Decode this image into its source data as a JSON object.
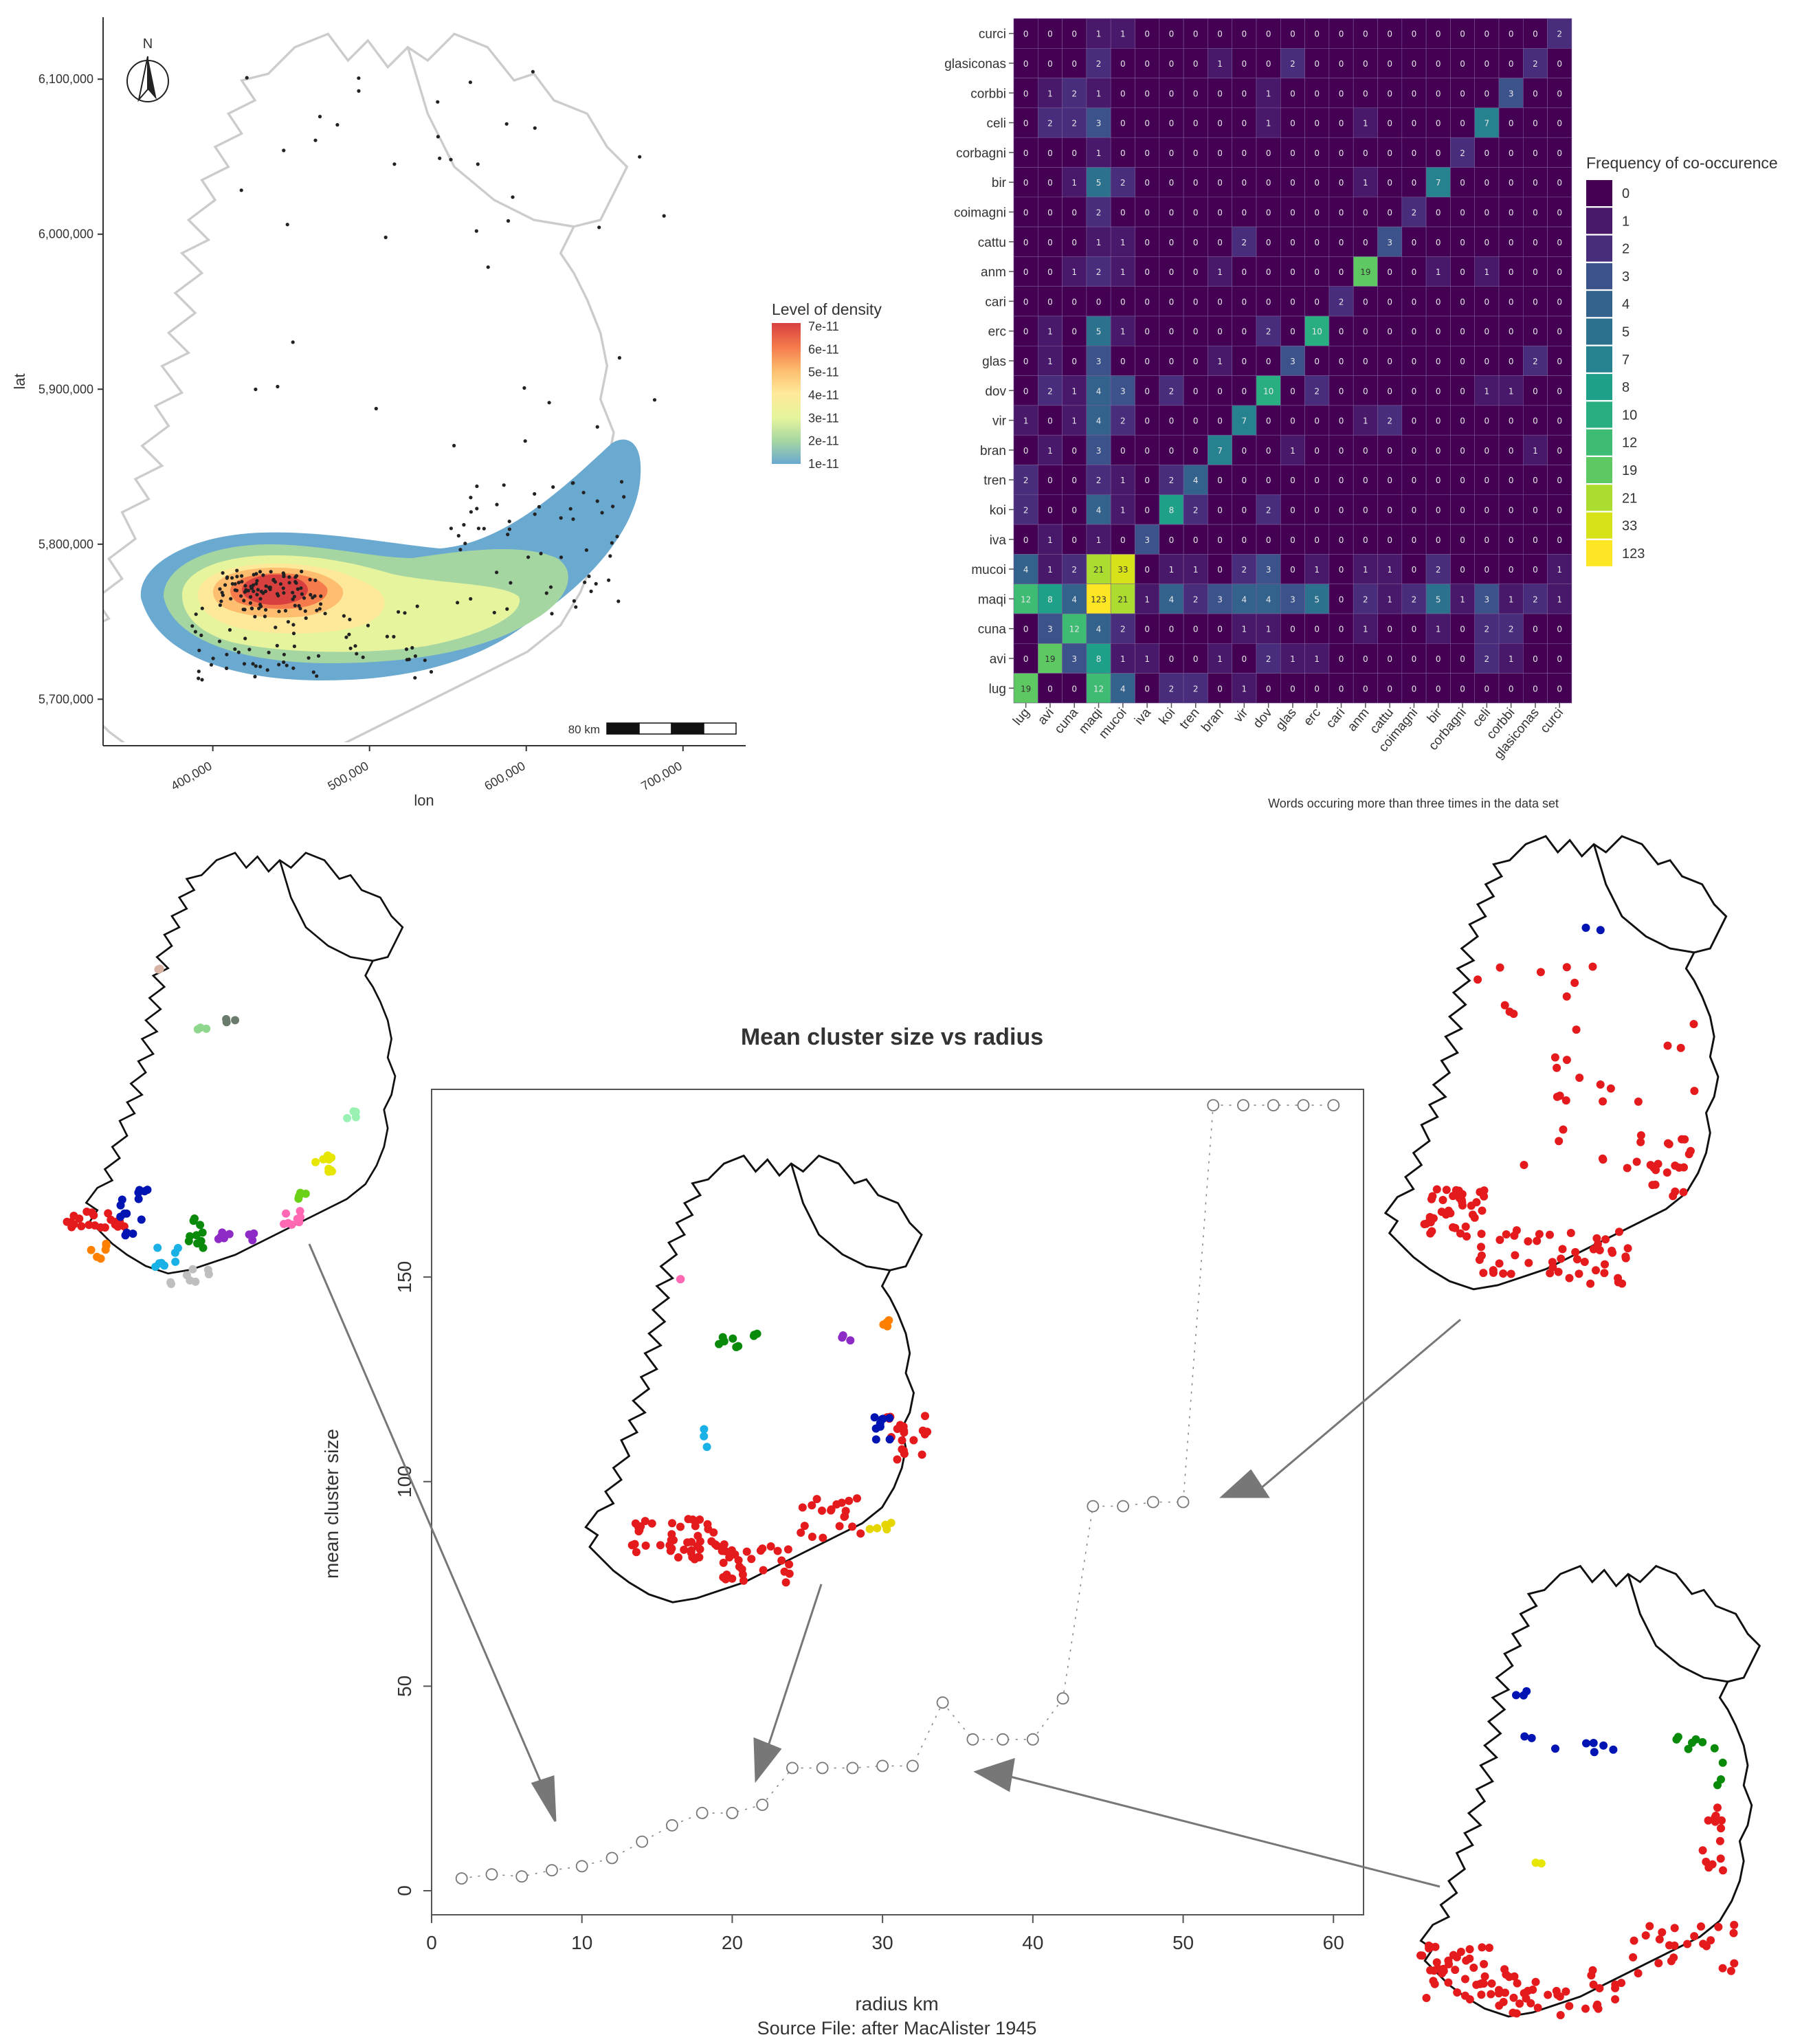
{
  "panels": {
    "density_map": {
      "x_axis_label": "lon",
      "y_axis_label": "lat",
      "x_ticks": [
        "400,000",
        "500,000",
        "600,000",
        "700,000"
      ],
      "y_ticks": [
        "5,700,000",
        "5,800,000",
        "5,900,000",
        "6,000,000",
        "6,100,000"
      ],
      "north_label": "N",
      "scale_label": "80 km",
      "legend_title": "Level of density",
      "legend_labels": [
        "7e-11",
        "6e-11",
        "5e-11",
        "4e-11",
        "3e-11",
        "2e-11",
        "1e-11"
      ],
      "legend_colors": [
        "#d7403f",
        "#f57a4c",
        "#fdbf6f",
        "#fee99a",
        "#e6f59d",
        "#a5d6a2",
        "#6aa9d0"
      ]
    },
    "heatmap": {
      "words": [
        "lug",
        "avi",
        "cuna",
        "maqi",
        "mucoi",
        "iva",
        "koi",
        "tren",
        "bran",
        "vir",
        "dov",
        "glas",
        "erc",
        "cari",
        "anm",
        "cattu",
        "coimagni",
        "bir",
        "corbagni",
        "celi",
        "corbbi",
        "glasiconas",
        "curci"
      ],
      "legend_title": "Frequency of co-occurence",
      "legend_values": [
        "0",
        "1",
        "2",
        "3",
        "4",
        "5",
        "7",
        "8",
        "10",
        "12",
        "19",
        "21",
        "33",
        "123"
      ],
      "legend_colors": [
        "#440154",
        "#48186a",
        "#472d7b",
        "#424086",
        "#3b528b",
        "#33638d",
        "#2c728e",
        "#26828e",
        "#21918c",
        "#1fa088",
        "#28ae80",
        "#3fbc73",
        "#5ec962",
        "#84d44b",
        "#addc30",
        "#d8e219",
        "#fde725"
      ],
      "caption": "Words occuring more than three times in the data set"
    },
    "cluster_chart": {
      "title": "Mean cluster size vs radius",
      "x_axis_label": "radius  km",
      "y_axis_label": "mean cluster size",
      "x_ticks": [
        "0",
        "10",
        "20",
        "30",
        "40",
        "50",
        "60"
      ],
      "y_ticks": [
        "0",
        "50",
        "100",
        "150"
      ],
      "source": "Source File:  after MacAlister 1945"
    }
  },
  "chart_data": [
    {
      "type": "map",
      "xlabel": "lon",
      "ylabel": "lat",
      "xlim": [
        330000,
        740000
      ],
      "ylim": [
        5670000,
        6140000
      ],
      "legend_title": "Level of density",
      "legend_levels": [
        "1e-11",
        "2e-11",
        "3e-11",
        "4e-11",
        "5e-11",
        "6e-11",
        "7e-11"
      ],
      "density_peak": [
        435000,
        5775000
      ]
    },
    {
      "type": "heatmap",
      "x_categories": [
        "lug",
        "avi",
        "cuna",
        "maqi",
        "mucoi",
        "iva",
        "koi",
        "tren",
        "bran",
        "vir",
        "dov",
        "glas",
        "erc",
        "cari",
        "anm",
        "cattu",
        "coimagni",
        "bir",
        "corbagni",
        "celi",
        "corbbi",
        "glasiconas",
        "curci"
      ],
      "y_categories": [
        "curci",
        "glasiconas",
        "corbbi",
        "celi",
        "corbagni",
        "bir",
        "coimagni",
        "cattu",
        "anm",
        "cari",
        "erc",
        "glas",
        "dov",
        "vir",
        "bran",
        "tren",
        "koi",
        "iva",
        "mucoi",
        "maqi",
        "cuna",
        "avi",
        "lug"
      ],
      "values": [
        [
          0,
          0,
          0,
          1,
          1,
          0,
          0,
          0,
          0,
          0,
          0,
          0,
          0,
          0,
          0,
          0,
          0,
          0,
          0,
          0,
          0,
          0,
          2
        ],
        [
          0,
          0,
          0,
          2,
          0,
          0,
          0,
          0,
          1,
          0,
          0,
          2,
          0,
          0,
          0,
          0,
          0,
          0,
          0,
          0,
          0,
          2,
          0
        ],
        [
          0,
          1,
          2,
          1,
          0,
          0,
          0,
          0,
          0,
          0,
          1,
          0,
          0,
          0,
          0,
          0,
          0,
          0,
          0,
          0,
          3,
          0,
          0
        ],
        [
          0,
          2,
          2,
          3,
          0,
          0,
          0,
          0,
          0,
          0,
          1,
          0,
          0,
          0,
          1,
          0,
          0,
          0,
          0,
          7,
          0,
          0,
          0
        ],
        [
          0,
          0,
          0,
          1,
          0,
          0,
          0,
          0,
          0,
          0,
          0,
          0,
          0,
          0,
          0,
          0,
          0,
          0,
          2,
          0,
          0,
          0,
          0
        ],
        [
          0,
          0,
          1,
          5,
          2,
          0,
          0,
          0,
          0,
          0,
          0,
          0,
          0,
          0,
          1,
          0,
          0,
          7,
          0,
          0,
          0,
          0,
          0
        ],
        [
          0,
          0,
          0,
          2,
          0,
          0,
          0,
          0,
          0,
          0,
          0,
          0,
          0,
          0,
          0,
          0,
          2,
          0,
          0,
          0,
          0,
          0,
          0
        ],
        [
          0,
          0,
          0,
          1,
          1,
          0,
          0,
          0,
          0,
          2,
          0,
          0,
          0,
          0,
          0,
          3,
          0,
          0,
          0,
          0,
          0,
          0,
          0
        ],
        [
          0,
          0,
          1,
          2,
          1,
          0,
          0,
          0,
          1,
          0,
          0,
          0,
          0,
          0,
          19,
          0,
          0,
          1,
          0,
          1,
          0,
          0,
          0
        ],
        [
          0,
          0,
          0,
          0,
          0,
          0,
          0,
          0,
          0,
          0,
          0,
          0,
          0,
          2,
          0,
          0,
          0,
          0,
          0,
          0,
          0,
          0,
          0
        ],
        [
          0,
          1,
          0,
          5,
          1,
          0,
          0,
          0,
          0,
          0,
          2,
          0,
          10,
          0,
          0,
          0,
          0,
          0,
          0,
          0,
          0,
          0,
          0
        ],
        [
          0,
          1,
          0,
          3,
          0,
          0,
          0,
          0,
          1,
          0,
          0,
          3,
          0,
          0,
          0,
          0,
          0,
          0,
          0,
          0,
          0,
          2,
          0
        ],
        [
          0,
          2,
          1,
          4,
          3,
          0,
          2,
          0,
          0,
          0,
          10,
          0,
          2,
          0,
          0,
          0,
          0,
          0,
          0,
          1,
          1,
          0,
          0
        ],
        [
          1,
          0,
          1,
          4,
          2,
          0,
          0,
          0,
          0,
          7,
          0,
          0,
          0,
          0,
          1,
          2,
          0,
          0,
          0,
          0,
          0,
          0,
          0
        ],
        [
          0,
          1,
          0,
          3,
          0,
          0,
          0,
          0,
          7,
          0,
          0,
          1,
          0,
          0,
          0,
          0,
          0,
          0,
          0,
          0,
          0,
          1,
          0
        ],
        [
          2,
          0,
          0,
          2,
          1,
          0,
          2,
          4,
          0,
          0,
          0,
          0,
          0,
          0,
          0,
          0,
          0,
          0,
          0,
          0,
          0,
          0,
          0
        ],
        [
          2,
          0,
          0,
          4,
          1,
          0,
          8,
          2,
          0,
          0,
          2,
          0,
          0,
          0,
          0,
          0,
          0,
          0,
          0,
          0,
          0,
          0,
          0
        ],
        [
          0,
          1,
          0,
          1,
          0,
          3,
          0,
          0,
          0,
          0,
          0,
          0,
          0,
          0,
          0,
          0,
          0,
          0,
          0,
          0,
          0,
          0,
          0
        ],
        [
          4,
          1,
          2,
          21,
          33,
          0,
          1,
          1,
          0,
          2,
          3,
          0,
          1,
          0,
          1,
          1,
          0,
          2,
          0,
          0,
          0,
          0,
          1
        ],
        [
          12,
          8,
          4,
          123,
          21,
          1,
          4,
          2,
          3,
          4,
          4,
          3,
          5,
          0,
          2,
          1,
          2,
          5,
          1,
          3,
          1,
          2,
          1
        ],
        [
          0,
          3,
          12,
          4,
          2,
          0,
          0,
          0,
          0,
          1,
          1,
          0,
          0,
          0,
          1,
          0,
          0,
          1,
          0,
          2,
          2,
          0,
          0
        ],
        [
          0,
          19,
          3,
          8,
          1,
          1,
          0,
          0,
          1,
          0,
          2,
          1,
          1,
          0,
          0,
          0,
          0,
          0,
          0,
          2,
          1,
          0,
          0
        ],
        [
          19,
          0,
          0,
          12,
          4,
          0,
          2,
          2,
          0,
          1,
          0,
          0,
          0,
          0,
          0,
          0,
          0,
          0,
          0,
          0,
          0,
          0,
          0
        ]
      ],
      "legend_title": "Frequency of co-occurence"
    },
    {
      "type": "line",
      "title": "Mean cluster size vs radius",
      "xlabel": "radius  km",
      "ylabel": "mean cluster size",
      "xlim": [
        0,
        62
      ],
      "ylim": [
        0,
        190
      ],
      "x": [
        2,
        4,
        6,
        8,
        10,
        12,
        14,
        16,
        18,
        20,
        22,
        24,
        26,
        28,
        30,
        32,
        34,
        36,
        38,
        40,
        42,
        44,
        46,
        48,
        50,
        52,
        54,
        56,
        58,
        60
      ],
      "values": [
        3,
        4,
        3.5,
        5,
        6,
        8,
        12,
        16,
        19,
        19,
        21,
        30,
        30,
        30,
        30.5,
        30.5,
        46,
        37,
        37,
        37,
        47,
        94,
        94,
        95,
        95,
        192,
        192,
        192,
        192,
        192
      ]
    }
  ]
}
